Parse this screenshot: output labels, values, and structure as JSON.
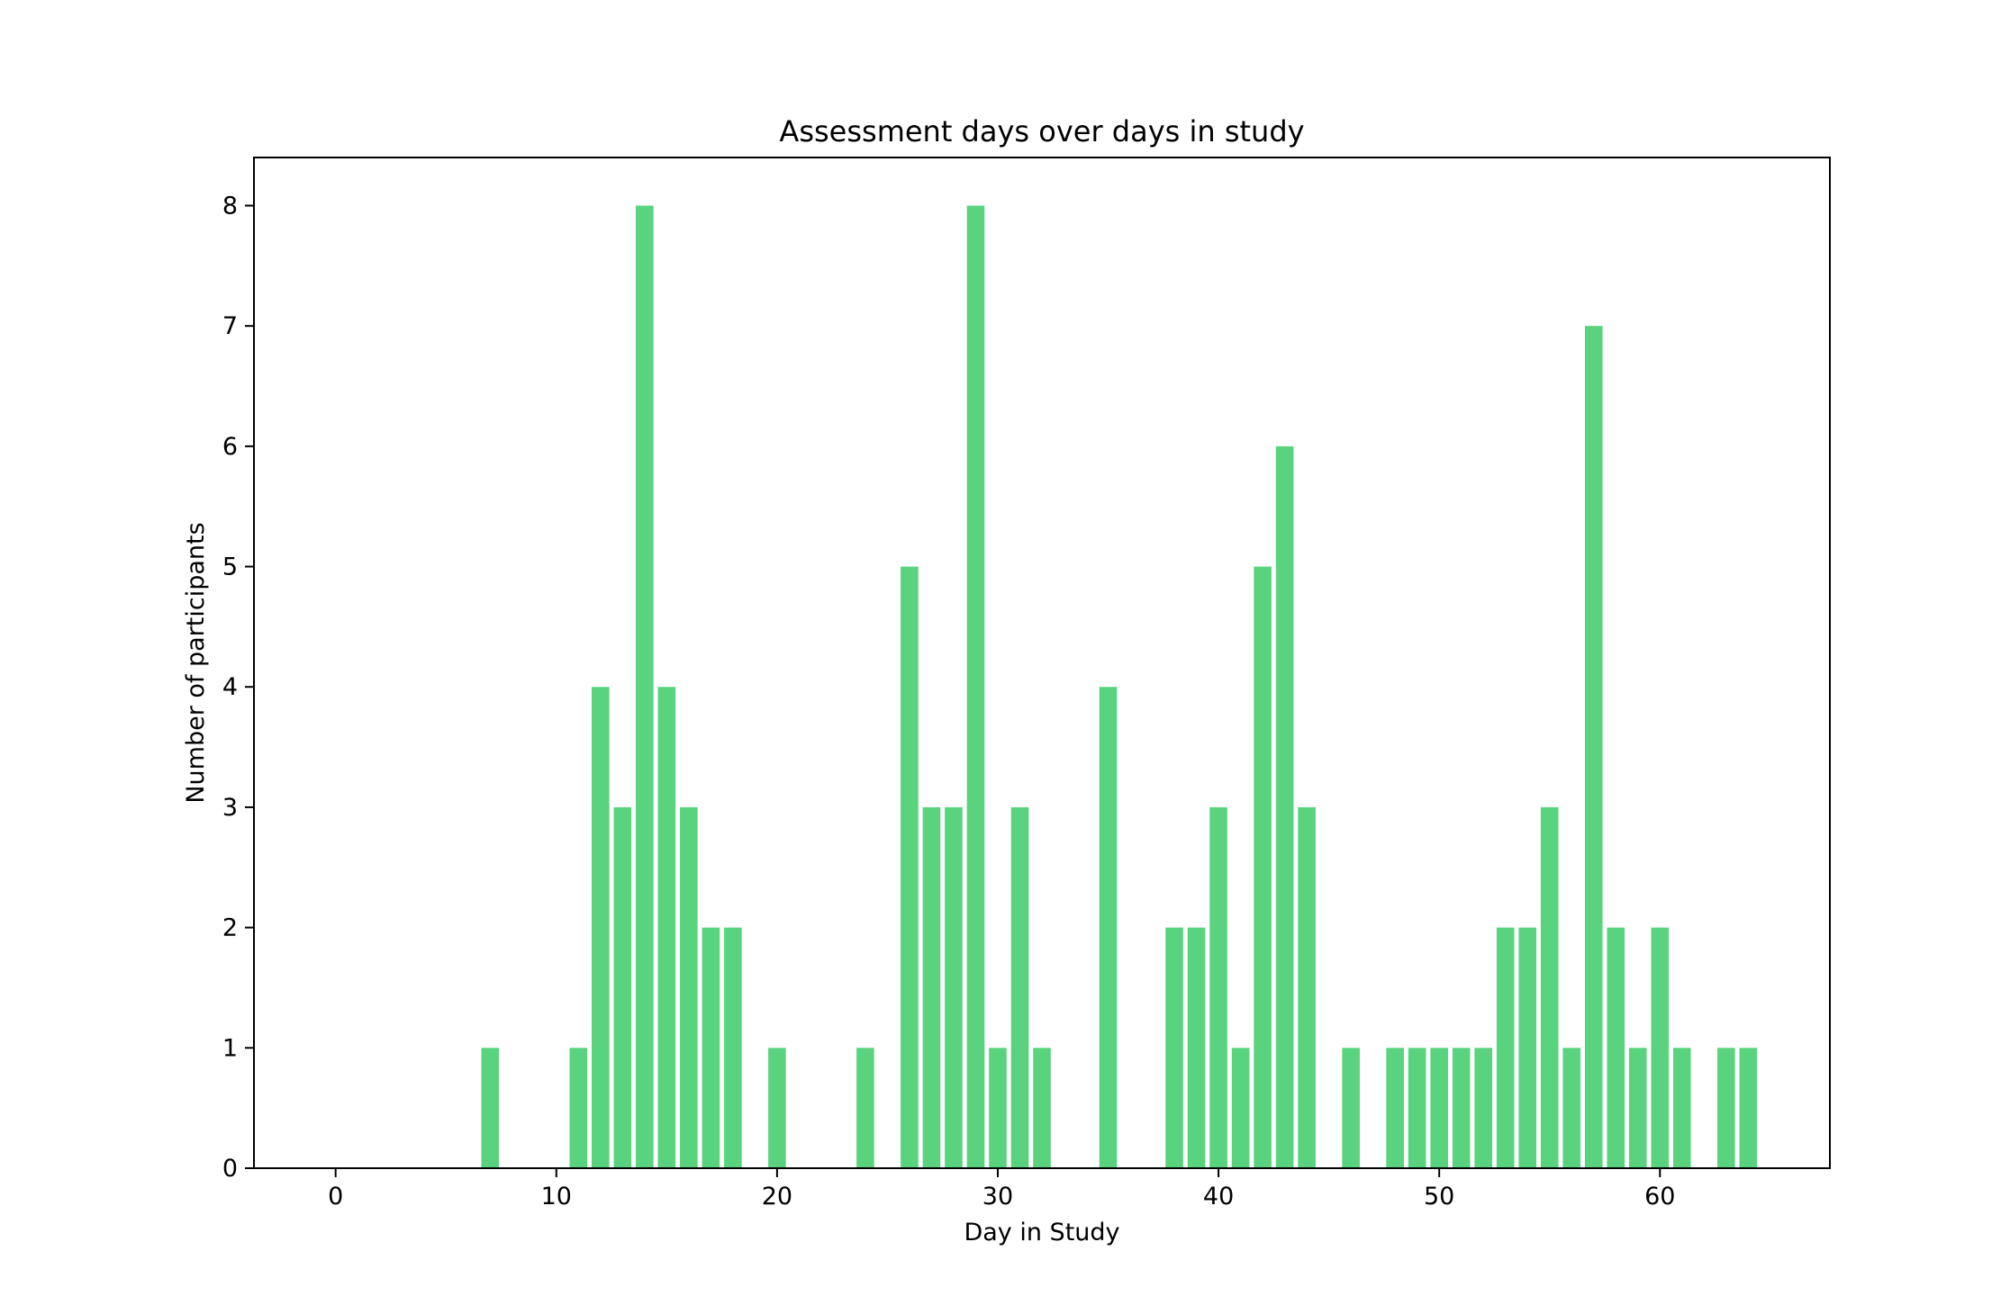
{
  "chart_data": {
    "type": "bar",
    "title": "Assessment days over days in study",
    "xlabel": "Day in Study",
    "ylabel": "Number of participants",
    "xlim": [
      -3.7,
      67.7
    ],
    "ylim": [
      0,
      8.4
    ],
    "xticks": [
      0,
      10,
      20,
      30,
      40,
      50,
      60
    ],
    "yticks": [
      0,
      1,
      2,
      3,
      4,
      5,
      6,
      7,
      8
    ],
    "bar_color": "#5ad37f",
    "grid": false,
    "legend": "none",
    "x": [
      7,
      11,
      12,
      13,
      14,
      15,
      16,
      17,
      18,
      20,
      24,
      26,
      27,
      28,
      29,
      30,
      31,
      32,
      35,
      38,
      39,
      40,
      41,
      42,
      43,
      44,
      46,
      48,
      49,
      50,
      51,
      52,
      53,
      54,
      55,
      56,
      57,
      58,
      59,
      60,
      61,
      63,
      64
    ],
    "values": [
      1,
      1,
      4,
      3,
      8,
      4,
      3,
      2,
      2,
      1,
      1,
      5,
      3,
      3,
      8,
      1,
      3,
      1,
      4,
      2,
      2,
      3,
      1,
      5,
      6,
      3,
      1,
      1,
      1,
      1,
      1,
      1,
      2,
      2,
      3,
      1,
      7,
      2,
      1,
      2,
      1,
      1,
      1
    ]
  }
}
